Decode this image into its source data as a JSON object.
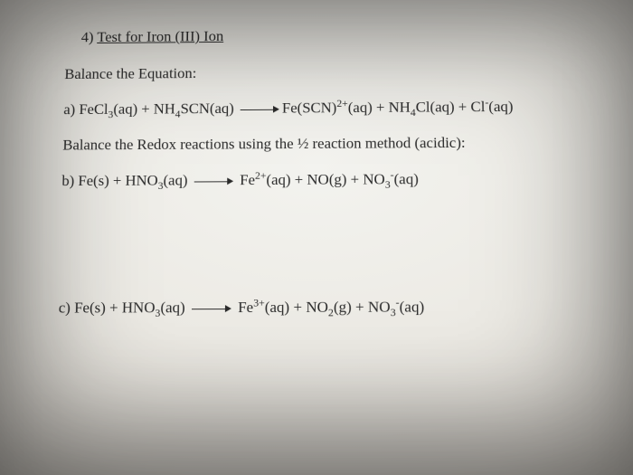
{
  "title": {
    "num": "4)",
    "text": "Test for Iron (III) Ion"
  },
  "lineA_label": "Balance the Equation:",
  "eqA": {
    "tag": "a)",
    "l1": "FeCl",
    "l1_sub": "3",
    "l1_state": "(aq)",
    "plus1": " + ",
    "l2a": "NH",
    "l2a_sub": "4",
    "l2b": "SCN(aq)",
    "r1": "Fe(SCN)",
    "r1_sup": "2+",
    "r1_state": "(aq)",
    "plus2": " + ",
    "r2a": "NH",
    "r2a_sub": "4",
    "r2b": "Cl(aq)",
    "plus3": " +  ",
    "r3": "Cl",
    "r3_sup": "-",
    "r3_state": "(aq)"
  },
  "lineB_label": "Balance the Redox reactions using the ½ reaction method (acidic):",
  "eqB": {
    "tag": "b)",
    "l1": "Fe(s)",
    "plus1": "   +   ",
    "l2a": "HNO",
    "l2a_sub": "3",
    "l2b": "(aq)",
    "r1": "Fe",
    "r1_sup": "2+",
    "r1_state": "(aq)",
    "plus2": "   +   ",
    "r2": "NO(g)",
    "plus3": "  +  ",
    "r3a": "NO",
    "r3a_sub": "3",
    "r3a_sup": "-",
    "r3b": "(aq)"
  },
  "eqC": {
    "tag": "c)",
    "l1": "Fe(s)",
    "plus1": "   +    ",
    "l2a": "HNO",
    "l2a_sub": "3",
    "l2b": "(aq)",
    "r1": "Fe",
    "r1_sup": "3+",
    "r1_state": "(aq)",
    "plus2": "   +   ",
    "r2a": "NO",
    "r2a_sub": "2",
    "r2b": "(g)",
    "plus3": "  +  ",
    "r3a": "NO",
    "r3a_sub": "3",
    "r3a_sup": "-",
    "r3b": "(aq)"
  }
}
